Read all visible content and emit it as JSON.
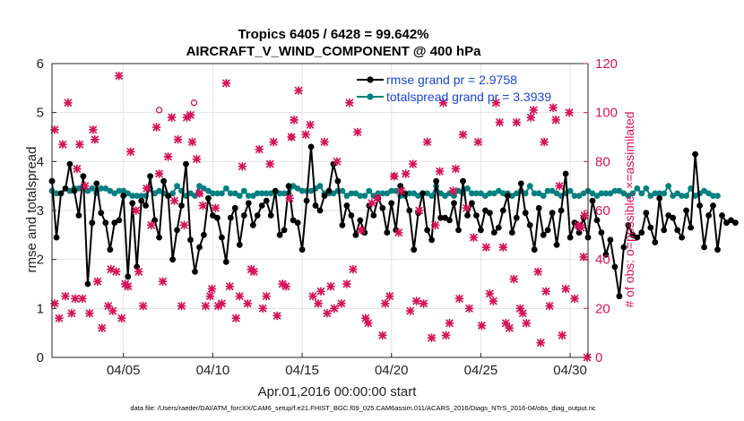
{
  "chart_data": {
    "type": "line",
    "title": "Tropics 6405 / 6428 = 99.642%",
    "subtitle": "AIRCRAFT_V_WIND_COMPONENT @ 400 hPa",
    "xlabel": "Apr.01,2016 00:00:00 start",
    "ylabel_left": "rmse and totalspread",
    "ylabel_right": "# of obs: o=possible; ×=assimilated",
    "x_range": [
      1,
      31
    ],
    "ylim_left": [
      0,
      6
    ],
    "ylim_right": [
      0,
      120
    ],
    "x_ticks": [
      5,
      10,
      15,
      20,
      25,
      30
    ],
    "x_tick_labels": [
      "04/05",
      "04/10",
      "04/15",
      "04/20",
      "04/25",
      "04/30"
    ],
    "y_left_ticks": [
      "0",
      "1",
      "2",
      "3",
      "4",
      "5",
      "6"
    ],
    "y_right_ticks": [
      "0",
      "20",
      "40",
      "60",
      "80",
      "100",
      "120"
    ],
    "legend": [
      {
        "name": "rmse grand pr = 2.9758",
        "color": "#000000"
      },
      {
        "name": "totalspread grand pr = 3.3939",
        "color": "#008080"
      }
    ],
    "footer": "data file: /Users/raeder/DAI/ATM_forcXX/CAM6_setup/f.e21.FHIST_BGC.f09_025.CAM6assim.011/ACARS_2016/Diags_NTrS_2016-04/obs_diag_output.nc",
    "colors": {
      "rmse": "#000000",
      "spread": "#008080",
      "obs": "#d6135a",
      "legend_text": "#1a44d8"
    },
    "series": [
      {
        "name": "rmse",
        "x_start": 1.0,
        "x_step": 0.25,
        "values": [
          3.6,
          2.45,
          3.35,
          3.45,
          3.95,
          3.4,
          2.9,
          3.7,
          1.5,
          2.75,
          3.55,
          2.95,
          2.75,
          2.2,
          2.75,
          2.8,
          3.3,
          1.65,
          3.15,
          1.85,
          3.2,
          3.1,
          3.7,
          2.8,
          2.45,
          3.6,
          3.3,
          2.0,
          2.6,
          3.1,
          3.95,
          2.4,
          1.75,
          2.25,
          2.5,
          3.25,
          2.9,
          2.85,
          2.45,
          1.95,
          2.85,
          3.05,
          2.3,
          2.9,
          3.15,
          2.7,
          2.9,
          3.1,
          3.2,
          2.9,
          3.4,
          2.5,
          2.6,
          3.5,
          2.8,
          2.75,
          2.2,
          3.2,
          4.3,
          3.1,
          3.0,
          3.3,
          3.4,
          3.95,
          3.6,
          2.7,
          3.1,
          2.9,
          2.5,
          2.8,
          2.55,
          3.1,
          2.9,
          3.25,
          3.05,
          2.55,
          3.15,
          2.6,
          3.5,
          3.35,
          3.0,
          2.2,
          2.95,
          3.35,
          2.6,
          2.4,
          3.6,
          2.85,
          2.85,
          2.8,
          3.15,
          2.6,
          3.6,
          2.9,
          3.15,
          2.9,
          2.6,
          3.0,
          2.95,
          2.55,
          2.65,
          3.0,
          3.3,
          2.55,
          2.85,
          3.55,
          2.95,
          2.7,
          2.2,
          3.05,
          2.5,
          2.6,
          2.95,
          2.3,
          3.0,
          3.75,
          2.45,
          2.75,
          2.55,
          2.85,
          2.45,
          3.2,
          2.8,
          2.55,
          2.1,
          2.4,
          1.85,
          1.25,
          2.25,
          2.7,
          2.5,
          2.45,
          2.55,
          2.95,
          2.65,
          2.35,
          3.25,
          2.6,
          2.9,
          2.85,
          2.6,
          2.45,
          3.0,
          2.65,
          4.15,
          3.1,
          2.25,
          2.9,
          3.1,
          2.2,
          2.9,
          2.75,
          2.8,
          2.75
        ]
      },
      {
        "name": "totalspread",
        "x_start": 1.0,
        "x_step": 0.25,
        "values": [
          3.4,
          3.35,
          3.35,
          3.45,
          3.4,
          3.45,
          3.45,
          3.5,
          3.4,
          3.45,
          3.35,
          3.45,
          3.45,
          3.4,
          3.35,
          3.4,
          3.4,
          3.35,
          3.3,
          3.3,
          3.3,
          3.3,
          3.45,
          3.35,
          3.4,
          3.35,
          3.3,
          3.35,
          3.5,
          3.4,
          3.3,
          3.35,
          3.3,
          3.5,
          3.45,
          3.4,
          3.35,
          3.35,
          3.35,
          3.45,
          3.35,
          3.35,
          3.3,
          3.4,
          3.3,
          3.3,
          3.35,
          3.35,
          3.35,
          3.35,
          3.4,
          3.35,
          3.35,
          3.35,
          3.5,
          3.45,
          3.4,
          3.4,
          3.4,
          3.45,
          3.5,
          3.35,
          3.35,
          3.35,
          3.4,
          3.4,
          3.3,
          3.35,
          3.35,
          3.3,
          3.3,
          3.4,
          3.3,
          3.35,
          3.35,
          3.35,
          3.4,
          3.4,
          3.3,
          3.3,
          3.35,
          3.35,
          3.3,
          3.35,
          3.35,
          3.3,
          3.5,
          3.35,
          3.3,
          3.35,
          3.3,
          3.4,
          3.35,
          3.45,
          3.35,
          3.35,
          3.35,
          3.3,
          3.35,
          3.35,
          3.4,
          3.35,
          3.35,
          3.3,
          3.35,
          3.4,
          3.35,
          3.5,
          3.35,
          3.35,
          3.3,
          3.4,
          3.4,
          3.35,
          3.3,
          3.35,
          3.4,
          3.3,
          3.3,
          3.35,
          3.4,
          3.35,
          3.3,
          3.35,
          3.35,
          3.35,
          3.4,
          3.4,
          3.35,
          3.3,
          3.35,
          3.45,
          3.35,
          3.45,
          3.3,
          3.35,
          3.35,
          3.35,
          3.5,
          3.3,
          3.35,
          3.3,
          3.3,
          3.45,
          3.3,
          3.35,
          3.4,
          3.35,
          3.3,
          3.3
        ]
      },
      {
        "name": "obs_assimilated",
        "axis": "right",
        "points": [
          [
            1.15,
            93
          ],
          [
            1.15,
            22
          ],
          [
            1.4,
            16
          ],
          [
            1.6,
            87
          ],
          [
            1.75,
            25
          ],
          [
            1.9,
            104
          ],
          [
            2.1,
            18
          ],
          [
            2.3,
            24
          ],
          [
            2.4,
            77
          ],
          [
            2.55,
            87
          ],
          [
            2.7,
            24
          ],
          [
            2.85,
            70
          ],
          [
            3.1,
            18
          ],
          [
            3.3,
            93
          ],
          [
            3.4,
            89
          ],
          [
            3.55,
            31
          ],
          [
            3.8,
            12
          ],
          [
            4.15,
            21
          ],
          [
            4.3,
            36
          ],
          [
            4.4,
            19
          ],
          [
            4.6,
            35
          ],
          [
            4.75,
            115
          ],
          [
            4.9,
            16
          ],
          [
            5.1,
            30
          ],
          [
            5.25,
            29
          ],
          [
            5.4,
            84
          ],
          [
            5.7,
            60
          ],
          [
            5.85,
            35
          ],
          [
            6.1,
            21
          ],
          [
            6.3,
            69
          ],
          [
            6.55,
            54
          ],
          [
            6.85,
            94
          ],
          [
            7.0,
            75
          ],
          [
            7.2,
            31
          ],
          [
            7.5,
            82
          ],
          [
            7.7,
            98
          ],
          [
            7.85,
            64
          ],
          [
            8.05,
            89
          ],
          [
            8.25,
            21
          ],
          [
            8.4,
            54
          ],
          [
            8.55,
            98
          ],
          [
            8.75,
            99
          ],
          [
            8.85,
            88
          ],
          [
            9.1,
            81
          ],
          [
            9.25,
            67
          ],
          [
            9.45,
            62
          ],
          [
            9.6,
            21
          ],
          [
            9.85,
            25
          ],
          [
            9.95,
            28
          ],
          [
            10.15,
            61
          ],
          [
            10.3,
            21
          ],
          [
            10.5,
            22
          ],
          [
            10.75,
            112
          ],
          [
            10.95,
            29
          ],
          [
            11.3,
            16
          ],
          [
            11.5,
            25
          ],
          [
            11.65,
            78
          ],
          [
            11.95,
            22
          ],
          [
            12.15,
            36
          ],
          [
            12.3,
            35
          ],
          [
            12.6,
            85
          ],
          [
            12.8,
            20
          ],
          [
            13.0,
            25
          ],
          [
            13.2,
            79
          ],
          [
            13.4,
            88
          ],
          [
            13.6,
            17
          ],
          [
            13.9,
            30
          ],
          [
            14.1,
            29
          ],
          [
            14.3,
            65
          ],
          [
            14.4,
            90
          ],
          [
            14.55,
            97
          ],
          [
            14.8,
            109
          ],
          [
            15.2,
            91
          ],
          [
            15.45,
            95
          ],
          [
            15.6,
            25
          ],
          [
            15.9,
            22
          ],
          [
            16.05,
            27
          ],
          [
            16.25,
            88
          ],
          [
            16.4,
            18
          ],
          [
            16.6,
            29
          ],
          [
            16.8,
            20
          ],
          [
            16.95,
            80
          ],
          [
            17.2,
            22
          ],
          [
            17.5,
            30
          ],
          [
            17.65,
            104
          ],
          [
            17.85,
            36
          ],
          [
            18.1,
            92
          ],
          [
            18.3,
            52
          ],
          [
            18.55,
            16
          ],
          [
            18.7,
            14
          ],
          [
            18.9,
            63
          ],
          [
            19.2,
            65
          ],
          [
            19.5,
            9
          ],
          [
            19.65,
            22
          ],
          [
            19.9,
            25
          ],
          [
            20.15,
            74
          ],
          [
            20.4,
            51
          ],
          [
            20.55,
            68
          ],
          [
            20.8,
            75
          ],
          [
            21.05,
            19
          ],
          [
            21.2,
            79
          ],
          [
            21.4,
            23
          ],
          [
            21.55,
            60
          ],
          [
            21.8,
            22
          ],
          [
            22.0,
            88
          ],
          [
            22.25,
            8
          ],
          [
            22.45,
            54
          ],
          [
            22.7,
            76
          ],
          [
            22.9,
            104
          ],
          [
            23.05,
            9
          ],
          [
            23.25,
            14
          ],
          [
            23.45,
            68
          ],
          [
            23.6,
            77
          ],
          [
            23.8,
            24
          ],
          [
            24.0,
            91
          ],
          [
            24.2,
            61
          ],
          [
            24.35,
            20
          ],
          [
            24.6,
            49
          ],
          [
            24.85,
            88
          ],
          [
            25.05,
            13
          ],
          [
            25.3,
            45
          ],
          [
            25.5,
            26
          ],
          [
            25.7,
            23
          ],
          [
            25.85,
            104
          ],
          [
            26.05,
            96
          ],
          [
            26.25,
            45
          ],
          [
            26.4,
            14
          ],
          [
            26.6,
            12
          ],
          [
            26.85,
            32
          ],
          [
            27.0,
            96
          ],
          [
            27.2,
            20
          ],
          [
            27.35,
            18
          ],
          [
            27.55,
            14
          ],
          [
            27.8,
            98
          ],
          [
            27.95,
            101
          ],
          [
            28.2,
            35
          ],
          [
            28.35,
            6
          ],
          [
            28.55,
            88
          ],
          [
            28.65,
            27
          ],
          [
            28.85,
            21
          ],
          [
            29.05,
            102
          ],
          [
            29.2,
            97
          ],
          [
            29.4,
            70
          ],
          [
            29.55,
            9
          ],
          [
            29.75,
            28
          ],
          [
            29.95,
            100
          ],
          [
            30.25,
            24
          ],
          [
            30.45,
            54
          ],
          [
            30.6,
            53
          ],
          [
            30.75,
            41
          ],
          [
            30.8,
            58
          ],
          [
            30.95,
            0
          ]
        ]
      },
      {
        "name": "obs_possible",
        "axis": "right",
        "points": [
          [
            7.0,
            101
          ],
          [
            8.95,
            104
          ],
          [
            9.25,
            67
          ],
          [
            14.4,
            90
          ],
          [
            20.15,
            74
          ]
        ]
      }
    ]
  }
}
